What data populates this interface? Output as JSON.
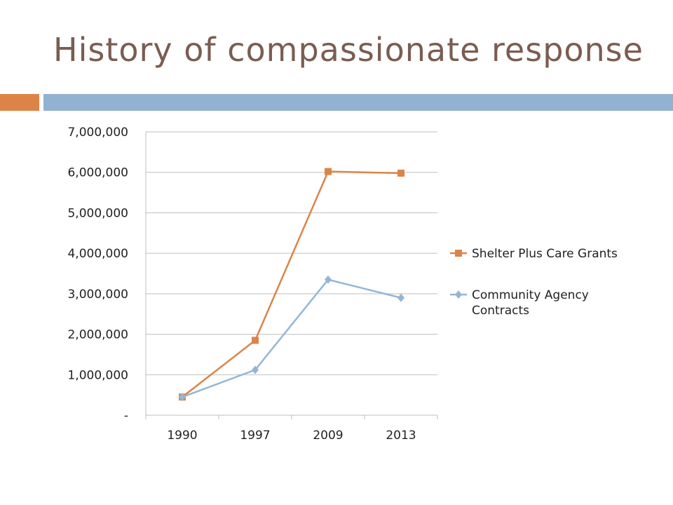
{
  "slide": {
    "title": "History of compassionate response"
  },
  "colors": {
    "title": "#7b5c51",
    "accent_orange": "#dc8448",
    "accent_blue": "#93b2d1",
    "grid": "#bfbfbf",
    "series_orange": "#dc8448",
    "series_blue": "#93b6d6"
  },
  "chart_data": {
    "type": "line",
    "categories": [
      "1990",
      "1997",
      "2009",
      "2013"
    ],
    "ylim": [
      0,
      7000000
    ],
    "ytick_labels": [
      "-",
      "1,000,000",
      "2,000,000",
      "3,000,000",
      "4,000,000",
      "5,000,000",
      "6,000,000",
      "7,000,000"
    ],
    "grid": true,
    "legend_position": "right",
    "series": [
      {
        "name": "Shelter Plus Care Grants",
        "marker": "square",
        "color": "#dc8448",
        "values": [
          450000,
          1850000,
          6020000,
          5980000
        ]
      },
      {
        "name": "Community Agency Contracts",
        "name_lines": [
          "Community Agency",
          "Contracts"
        ],
        "marker": "diamond",
        "color": "#93b6d6",
        "values": [
          450000,
          1120000,
          3350000,
          2900000
        ]
      }
    ]
  }
}
